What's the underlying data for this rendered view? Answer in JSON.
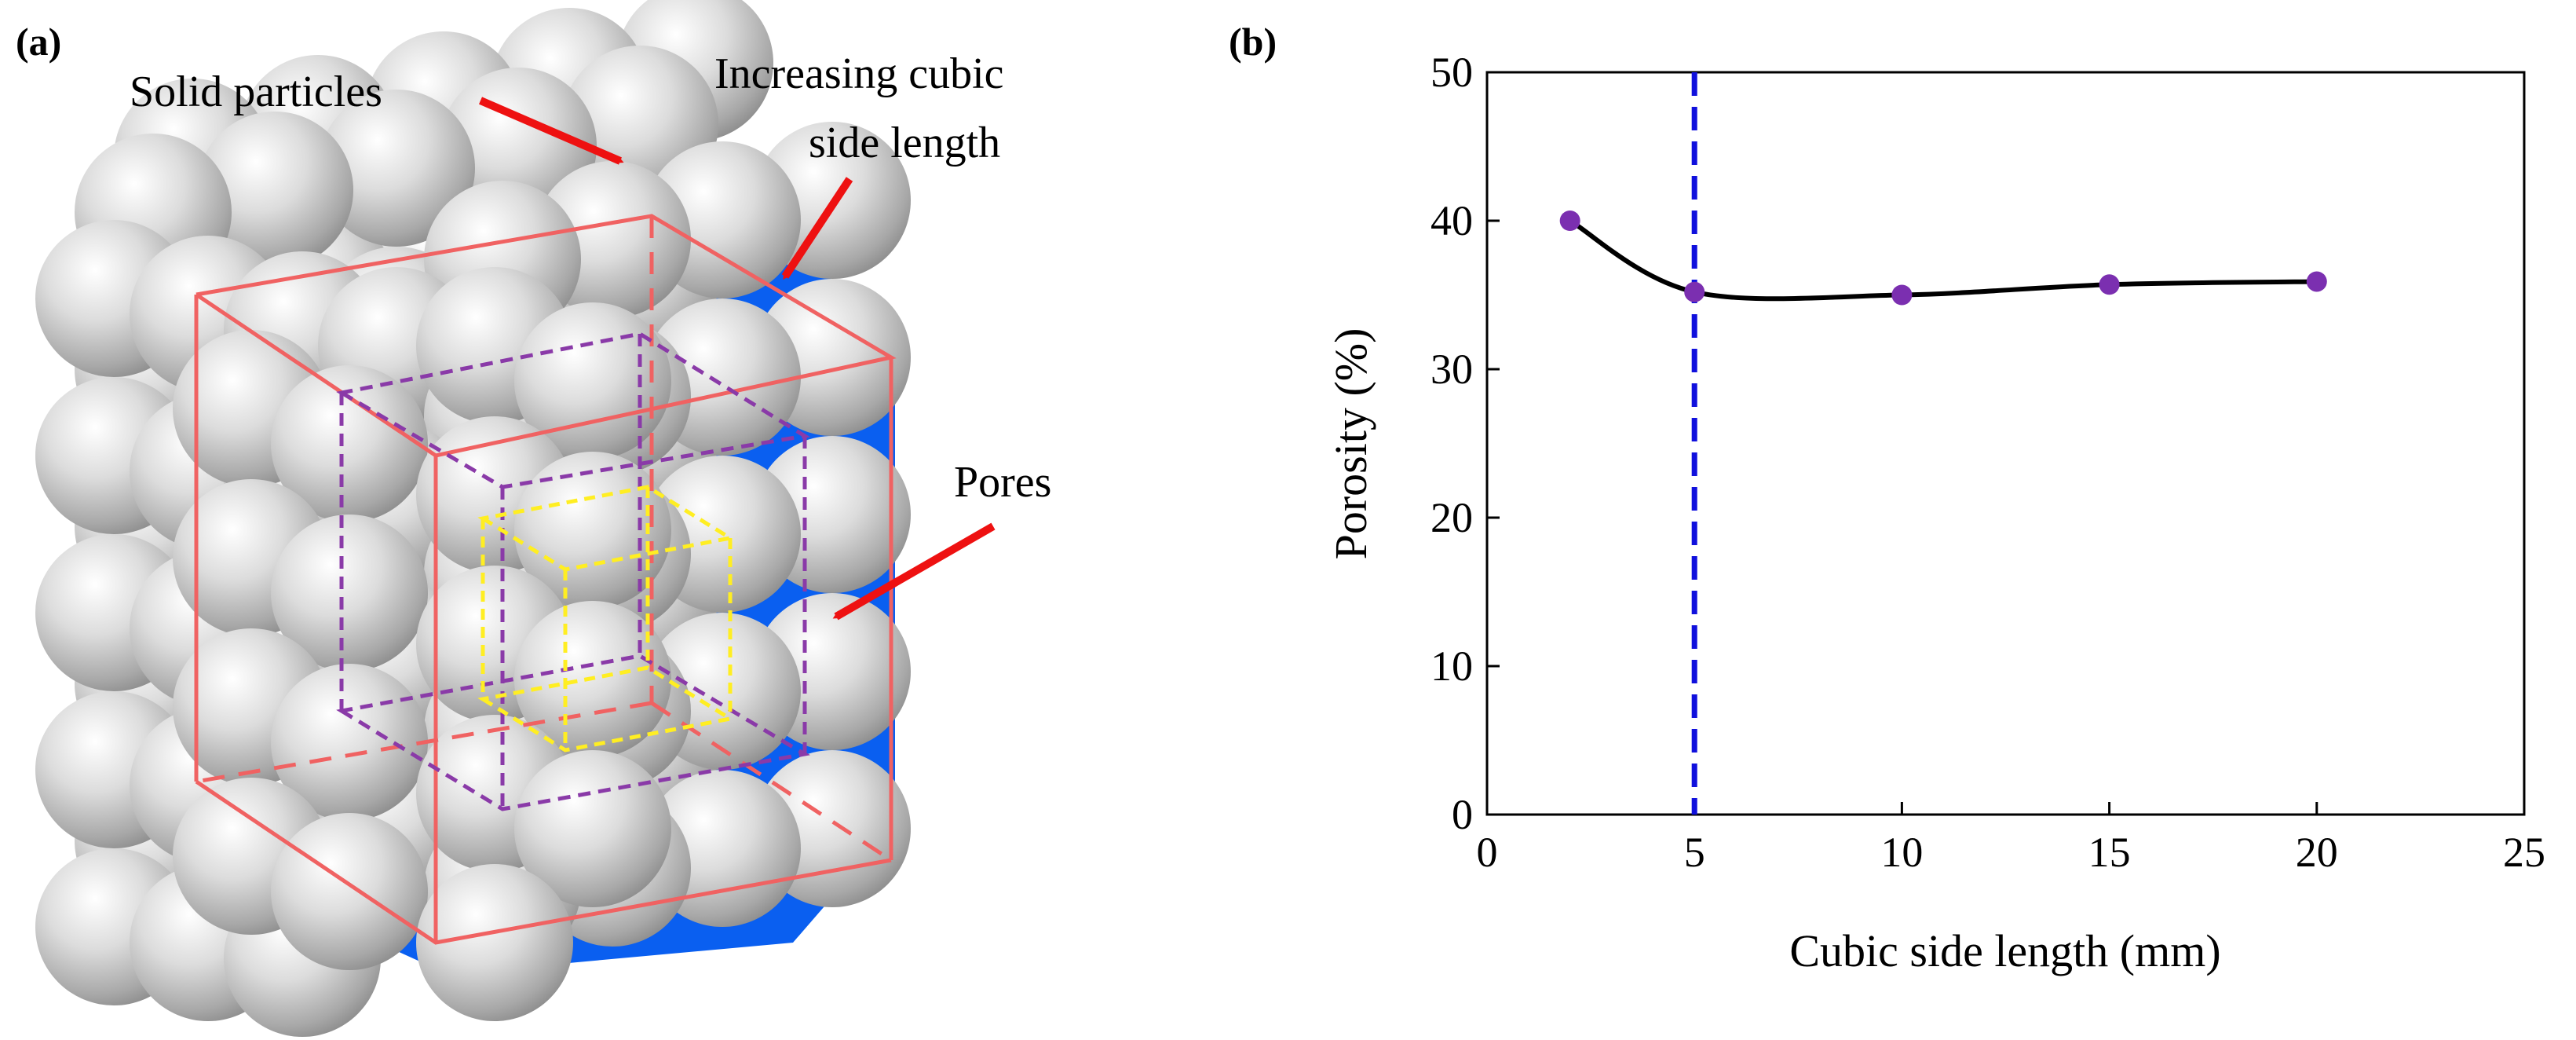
{
  "panel_a": {
    "label": "(a)",
    "annotations": {
      "solid_particles": "Solid particles",
      "increasing_line1": "Increasing cubic",
      "increasing_line2": "side length",
      "pores": "Pores"
    },
    "colors": {
      "sphere": "#c8c8c8",
      "pore": "#0a5ff0",
      "outer_cube": "#f06262",
      "middle_cube": "#8a3aa8",
      "inner_cube": "#ffee22",
      "arrow": "#ee1111"
    }
  },
  "panel_b": {
    "label": "(b)",
    "reference_line": {
      "x": 5,
      "color": "#1010dd"
    },
    "marker_color": "#7b2fb0",
    "curve_color": "#000000"
  },
  "chart_data": {
    "type": "scatter",
    "title": "",
    "xlabel": "Cubic side length (mm)",
    "ylabel": "Porosity (%)",
    "xlim": [
      0,
      25
    ],
    "ylim": [
      0,
      50
    ],
    "xticks": [
      0,
      5,
      10,
      15,
      20,
      25
    ],
    "yticks": [
      0,
      10,
      20,
      30,
      40,
      50
    ],
    "grid": false,
    "series": [
      {
        "name": "Porosity",
        "x": [
          2,
          5,
          10,
          15,
          20
        ],
        "y": [
          40.0,
          35.2,
          35.0,
          35.7,
          35.9
        ]
      }
    ]
  }
}
